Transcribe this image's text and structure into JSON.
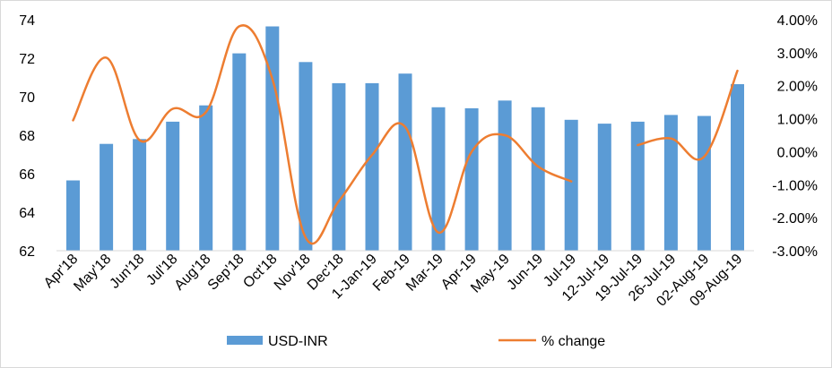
{
  "chart_data": {
    "type": "bar",
    "title": "",
    "categories": [
      "Apr'18",
      "May'18",
      "Jun'18",
      "Jul'18",
      "Aug'18",
      "Sep'18",
      "Oct'18",
      "Nov'18",
      "Dec'18",
      "1-Jan-19",
      "Feb-19",
      "Mar-19",
      "Apr-19",
      "May-19",
      "Jun-19",
      "Jul-19",
      "12-Jul-19",
      "19-Jul-19",
      "26-Jul-19",
      "02-Aug-19",
      "09-Aug-19"
    ],
    "series": [
      {
        "name": "USD-INR",
        "type": "bar",
        "axis": "left",
        "color": "#5b9bd5",
        "values": [
          65.65,
          67.55,
          67.8,
          68.7,
          69.55,
          72.25,
          73.65,
          71.8,
          70.7,
          70.7,
          71.2,
          69.45,
          69.4,
          69.8,
          69.45,
          68.8,
          68.6,
          68.7,
          69.05,
          69.0,
          70.65
        ]
      },
      {
        "name": "% change",
        "type": "line",
        "axis": "right",
        "smooth": true,
        "color": "#ed7d31",
        "values": [
          0.95,
          2.85,
          0.35,
          1.3,
          1.2,
          3.8,
          2.2,
          -2.6,
          -1.5,
          -0.1,
          0.75,
          -2.45,
          0.0,
          0.5,
          -0.45,
          -0.9,
          null,
          0.2,
          0.4,
          -0.15,
          2.45
        ]
      }
    ],
    "y_left": {
      "min": 62,
      "max": 74,
      "ticks": [
        "62",
        "64",
        "66",
        "68",
        "70",
        "72",
        "74"
      ]
    },
    "y_right": {
      "min": -3,
      "max": 4,
      "ticks": [
        "-3.00%",
        "-2.00%",
        "-1.00%",
        "0.00%",
        "1.00%",
        "2.00%",
        "3.00%",
        "4.00%"
      ]
    },
    "grid": false,
    "legend": {
      "position": "bottom",
      "items": [
        "USD-INR",
        "% change"
      ]
    }
  }
}
